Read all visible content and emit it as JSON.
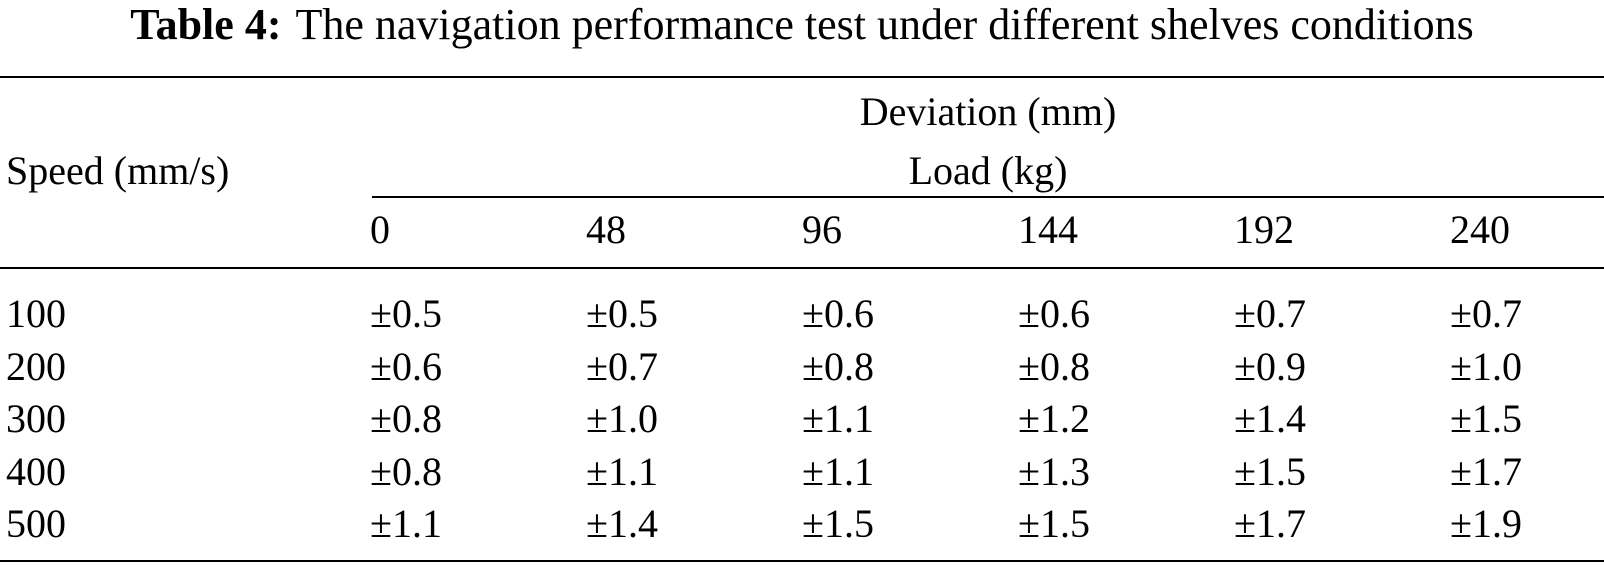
{
  "caption": {
    "label": "Table 4:",
    "text": "The navigation performance test under different shelves conditions"
  },
  "header": {
    "group_title": "Deviation (mm)",
    "row_header": "Speed (mm/s)",
    "load_title": "Load (kg)",
    "loads": [
      "0",
      "48",
      "96",
      "144",
      "192",
      "240"
    ]
  },
  "rows": [
    {
      "speed": "100",
      "values": [
        "±0.5",
        "±0.5",
        "±0.6",
        "±0.6",
        "±0.7",
        "±0.7"
      ]
    },
    {
      "speed": "200",
      "values": [
        "±0.6",
        "±0.7",
        "±0.8",
        "±0.8",
        "±0.9",
        "±1.0"
      ]
    },
    {
      "speed": "300",
      "values": [
        "±0.8",
        "±1.0",
        "±1.1",
        "±1.2",
        "±1.4",
        "±1.5"
      ]
    },
    {
      "speed": "400",
      "values": [
        "±0.8",
        "±1.1",
        "±1.1",
        "±1.3",
        "±1.5",
        "±1.7"
      ]
    },
    {
      "speed": "500",
      "values": [
        "±1.1",
        "±1.4",
        "±1.5",
        "±1.5",
        "±1.7",
        "±1.9"
      ]
    }
  ]
}
